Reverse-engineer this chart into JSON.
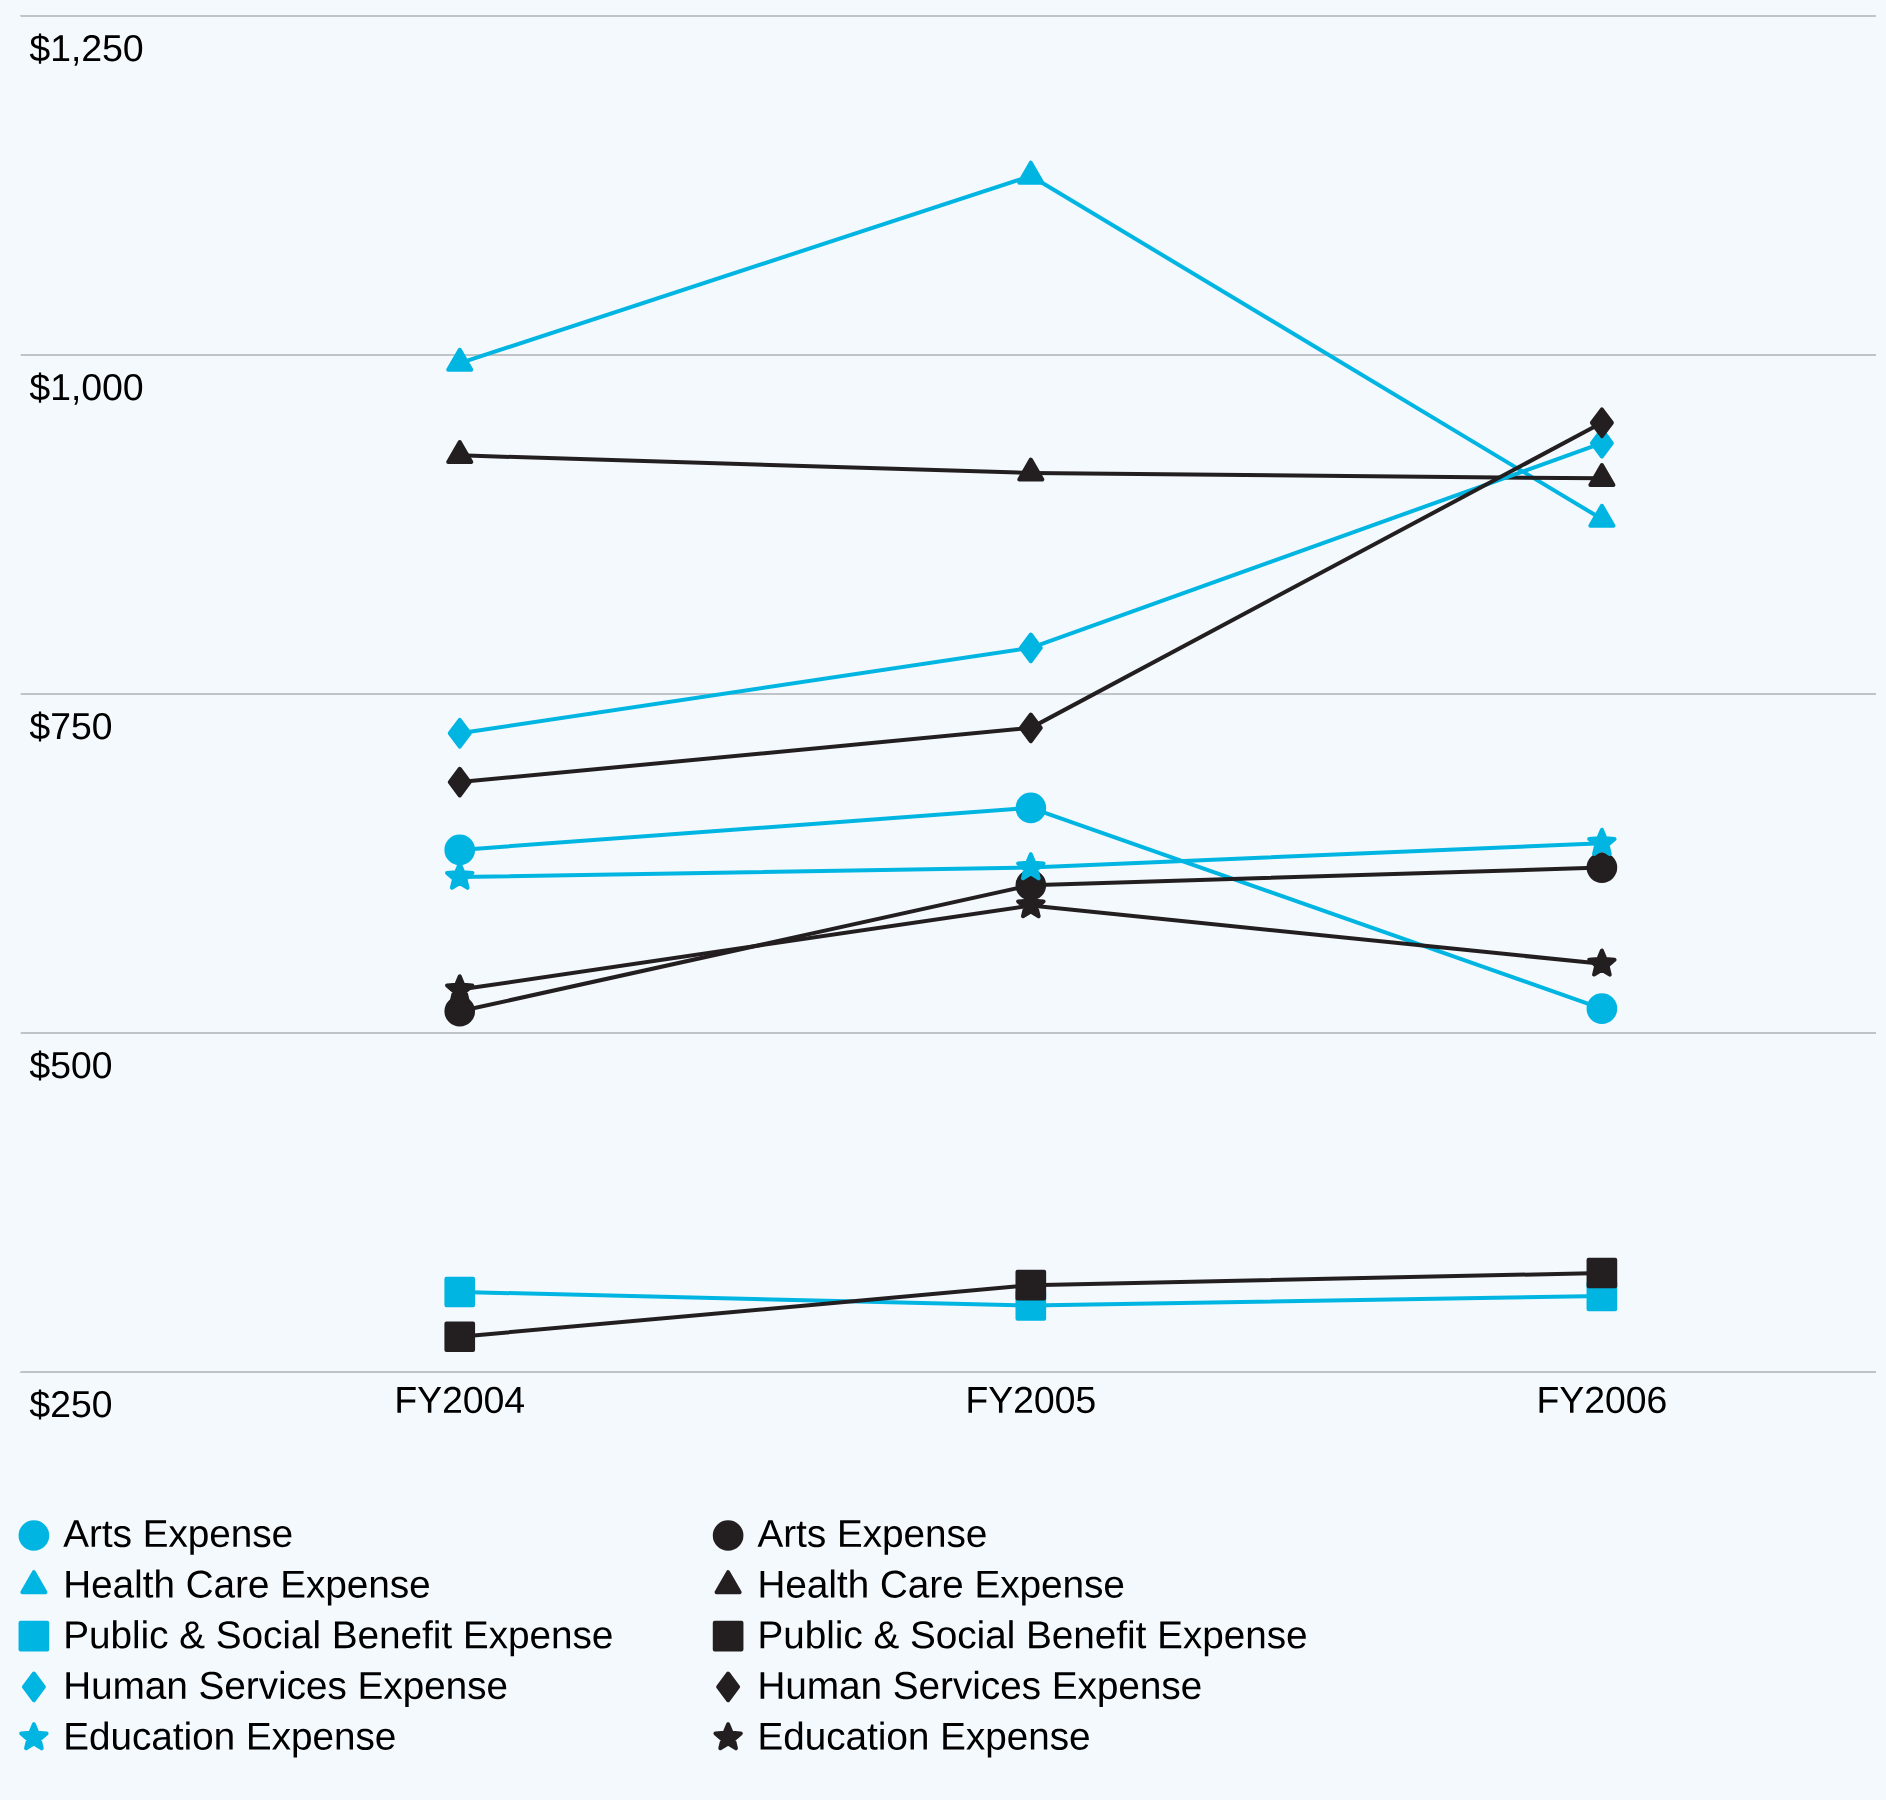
{
  "chart_data": {
    "type": "line",
    "categories": [
      "FY2004",
      "FY2005",
      "FY2006"
    ],
    "series": [
      {
        "name": "Arts Expense",
        "color": "#00b5e2",
        "marker": "circle",
        "values": [
          635,
          666,
          518
        ]
      },
      {
        "name": "Arts Expense",
        "color": "#231f20",
        "marker": "circle",
        "values": [
          516,
          609,
          622
        ]
      },
      {
        "name": "Health Care Expense",
        "color": "#00b5e2",
        "marker": "triangle",
        "values": [
          994,
          1132,
          879
        ]
      },
      {
        "name": "Health Care Expense",
        "color": "#231f20",
        "marker": "triangle",
        "values": [
          926,
          913,
          909
        ]
      },
      {
        "name": "Public & Social Benefit Expense",
        "color": "#00b5e2",
        "marker": "square",
        "values": [
          309,
          299,
          306
        ]
      },
      {
        "name": "Public & Social Benefit Expense",
        "color": "#231f20",
        "marker": "square",
        "values": [
          276,
          314,
          323
        ]
      },
      {
        "name": "Human Services Expense",
        "color": "#00b5e2",
        "marker": "diamond",
        "values": [
          721,
          784,
          935
        ]
      },
      {
        "name": "Human Services Expense",
        "color": "#231f20",
        "marker": "diamond",
        "values": [
          685,
          725,
          950
        ]
      },
      {
        "name": "Education Expense",
        "color": "#00b5e2",
        "marker": "star",
        "values": [
          615,
          622,
          640
        ]
      },
      {
        "name": "Education Expense",
        "color": "#231f20",
        "marker": "star",
        "values": [
          532,
          594,
          551
        ]
      }
    ],
    "ylim": [
      250,
      1250
    ],
    "yticks": [
      {
        "value": 250,
        "label": "$250"
      },
      {
        "value": 500,
        "label": "$500"
      },
      {
        "value": 750,
        "label": "$750"
      },
      {
        "value": 1000,
        "label": "$1,000"
      },
      {
        "value": 1250,
        "label": "$1,250"
      }
    ],
    "grid": "y",
    "legend": "bottom"
  }
}
